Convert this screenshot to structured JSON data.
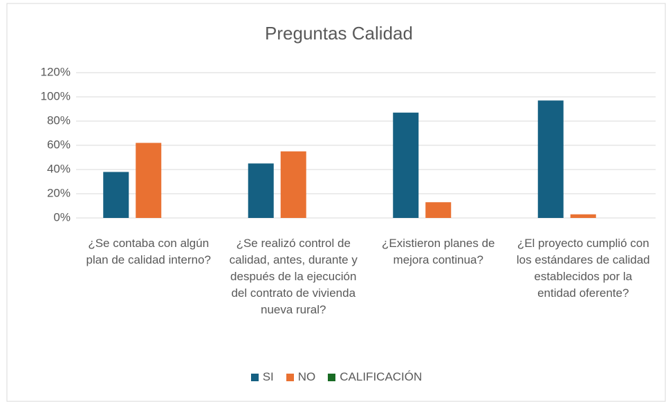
{
  "chart_data": {
    "type": "bar",
    "title": "Preguntas Calidad",
    "categories": [
      "¿Se contaba con algún plan de calidad interno?",
      "¿Se realizó control de calidad, antes, durante y después de la ejecución del contrato de vivienda nueva rural?",
      "¿Existieron planes de mejora continua?",
      "¿El proyecto cumplió con los estándares de calidad establecidos por la entidad oferente?"
    ],
    "series": [
      {
        "name": "SI",
        "color": "#156082",
        "values": [
          38,
          45,
          87,
          97
        ]
      },
      {
        "name": "NO",
        "color": "#e97132",
        "values": [
          62,
          55,
          13,
          3
        ]
      },
      {
        "name": "CALIFICACIÓN",
        "color": "#196b24",
        "values": [
          null,
          null,
          null,
          null
        ]
      }
    ],
    "ylim": [
      0,
      120
    ],
    "yticks": [
      {
        "value": 0,
        "label": "0%"
      },
      {
        "value": 20,
        "label": "20%"
      },
      {
        "value": 40,
        "label": "40%"
      },
      {
        "value": 60,
        "label": "60%"
      },
      {
        "value": 80,
        "label": "80%"
      },
      {
        "value": 100,
        "label": "100%"
      },
      {
        "value": 120,
        "label": "120%"
      }
    ],
    "grid": true,
    "legend": "bottom"
  }
}
